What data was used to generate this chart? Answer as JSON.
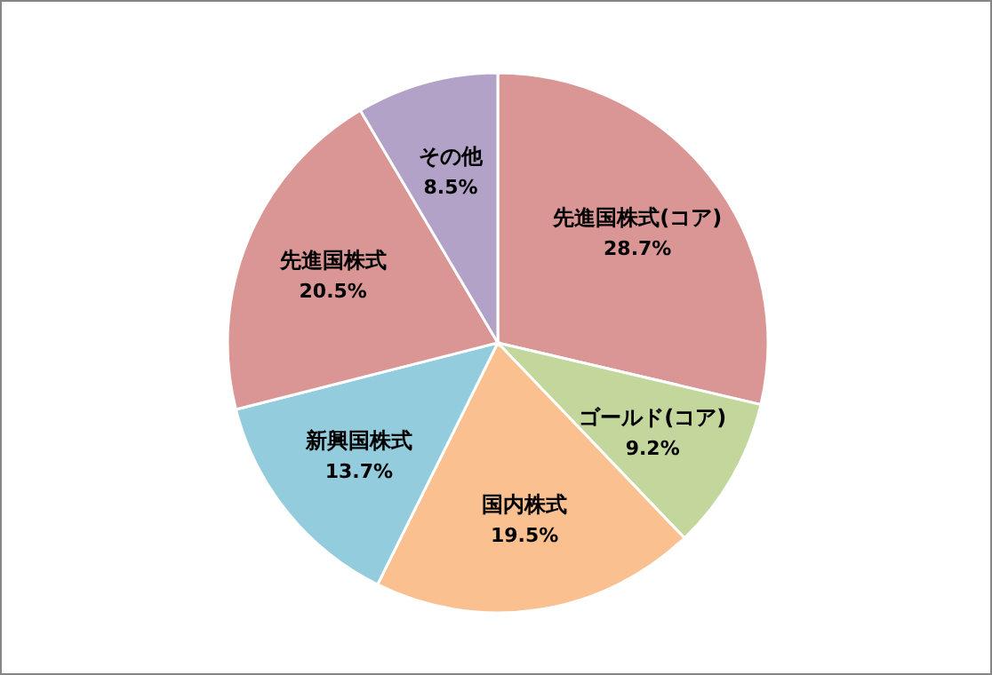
{
  "chart_data": {
    "type": "pie",
    "categories": [
      "先進国株式(コア)",
      "ゴールド(コア)",
      "国内株式",
      "新興国株式",
      "先進国株式",
      "その他"
    ],
    "values": [
      28.7,
      9.2,
      19.5,
      13.7,
      20.5,
      8.5
    ],
    "value_labels": [
      "28.7%",
      "9.2%",
      "19.5%",
      "13.7%",
      "20.5%",
      "8.5%"
    ],
    "colors": [
      "#d99694",
      "#c3d69b",
      "#fac090",
      "#93cddd",
      "#d99694",
      "#b3a2c7"
    ]
  }
}
